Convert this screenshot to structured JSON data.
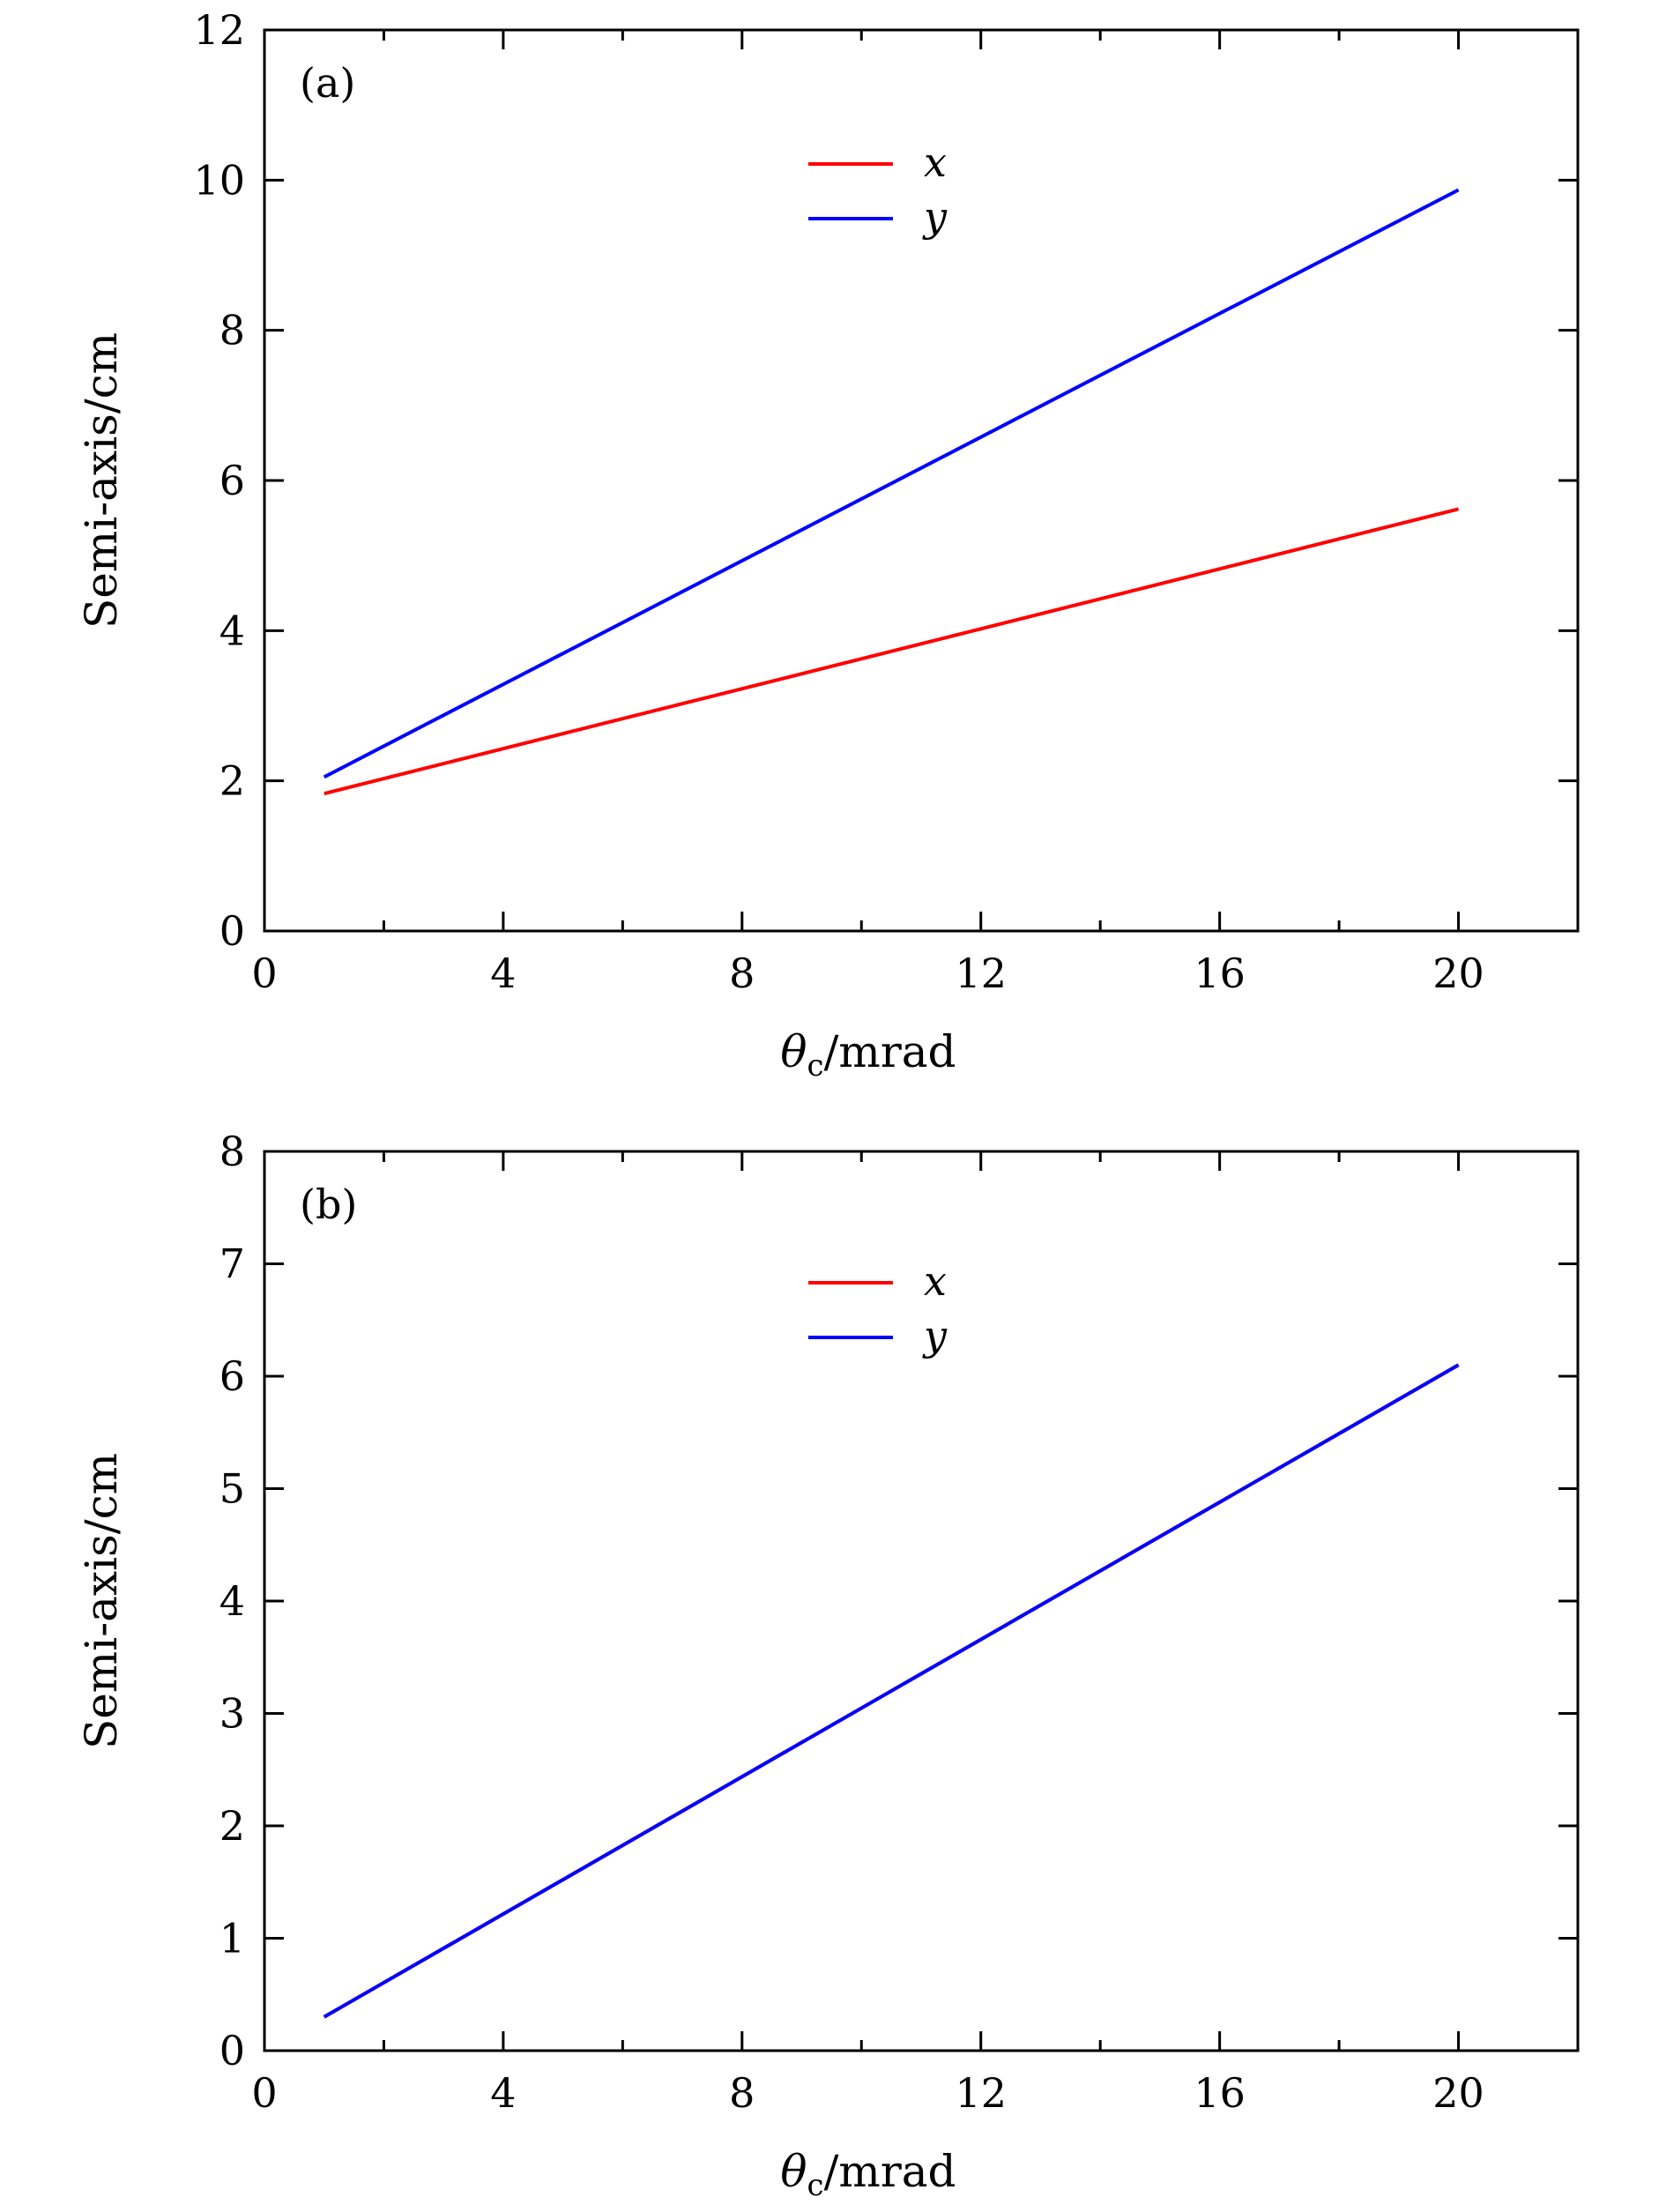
{
  "chart_data": [
    {
      "type": "line",
      "panel_label": "(a)",
      "xlabel_symbol": "θ",
      "xlabel_sub": "c",
      "xlabel_rest": "/mrad",
      "ylabel": "Semi-axis/cm",
      "xlim": [
        0,
        22
      ],
      "ylim": [
        0,
        12
      ],
      "xticks": [
        0,
        4,
        8,
        12,
        16,
        20
      ],
      "xticks_minor": [
        2,
        6,
        10,
        14,
        18
      ],
      "yticks": [
        0,
        2,
        4,
        6,
        8,
        10,
        12
      ],
      "yticks_minor": [],
      "legend_position": "top-center",
      "series": [
        {
          "name": "x",
          "color": "#ff0000",
          "x": [
            1,
            20
          ],
          "y": [
            1.83,
            5.62
          ]
        },
        {
          "name": "y",
          "color": "#0000ff",
          "x": [
            1,
            20
          ],
          "y": [
            2.05,
            9.87
          ]
        }
      ]
    },
    {
      "type": "line",
      "panel_label": "(b)",
      "xlabel_symbol": "θ",
      "xlabel_sub": "c",
      "xlabel_rest": "/mrad",
      "ylabel": "Semi-axis/cm",
      "xlim": [
        0,
        22
      ],
      "ylim": [
        0,
        8
      ],
      "xticks": [
        0,
        4,
        8,
        12,
        16,
        20
      ],
      "xticks_minor": [
        2,
        6,
        10,
        14,
        18
      ],
      "yticks": [
        0,
        1,
        2,
        3,
        4,
        5,
        6,
        7,
        8
      ],
      "yticks_minor": [],
      "legend_position": "top-center",
      "series": [
        {
          "name": "x",
          "color": "#ff0000",
          "x": [
            1,
            20
          ],
          "y": [
            0.3,
            6.1
          ]
        },
        {
          "name": "y",
          "color": "#0000ff",
          "x": [
            1,
            20
          ],
          "y": [
            0.3,
            6.1
          ]
        }
      ]
    }
  ]
}
